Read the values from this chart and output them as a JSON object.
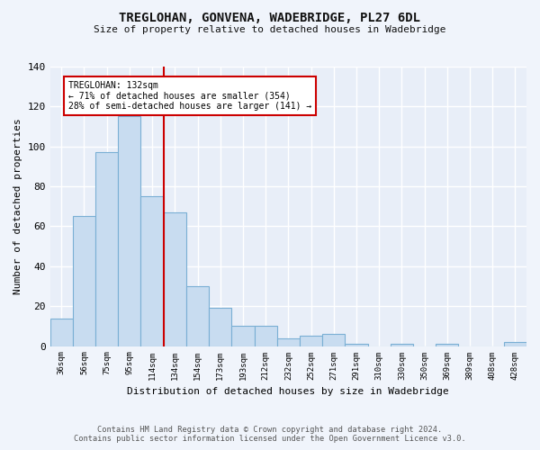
{
  "title": "TREGLOHAN, GONVENA, WADEBRIDGE, PL27 6DL",
  "subtitle": "Size of property relative to detached houses in Wadebridge",
  "xlabel": "Distribution of detached houses by size in Wadebridge",
  "ylabel": "Number of detached properties",
  "bar_color": "#c8dcf0",
  "bar_edge_color": "#7aafd4",
  "background_color": "#e8eef8",
  "grid_color": "#ffffff",
  "categories": [
    "36sqm",
    "56sqm",
    "75sqm",
    "95sqm",
    "114sqm",
    "134sqm",
    "154sqm",
    "173sqm",
    "193sqm",
    "212sqm",
    "232sqm",
    "252sqm",
    "271sqm",
    "291sqm",
    "310sqm",
    "330sqm",
    "350sqm",
    "369sqm",
    "389sqm",
    "408sqm",
    "428sqm"
  ],
  "values": [
    14,
    65,
    97,
    115,
    75,
    67,
    30,
    19,
    10,
    10,
    4,
    5,
    6,
    1,
    0,
    1,
    0,
    1,
    0,
    0,
    2
  ],
  "annotation_line1": "TREGLOHAN: 132sqm",
  "annotation_line2": "← 71% of detached houses are smaller (354)",
  "annotation_line3": "28% of semi-detached houses are larger (141) →",
  "marker_color": "#cc0000",
  "annotation_box_color": "#ffffff",
  "annotation_box_edge_color": "#cc0000",
  "ylim": [
    0,
    140
  ],
  "yticks": [
    0,
    20,
    40,
    60,
    80,
    100,
    120,
    140
  ],
  "footer_line1": "Contains HM Land Registry data © Crown copyright and database right 2024.",
  "footer_line2": "Contains public sector information licensed under the Open Government Licence v3.0."
}
